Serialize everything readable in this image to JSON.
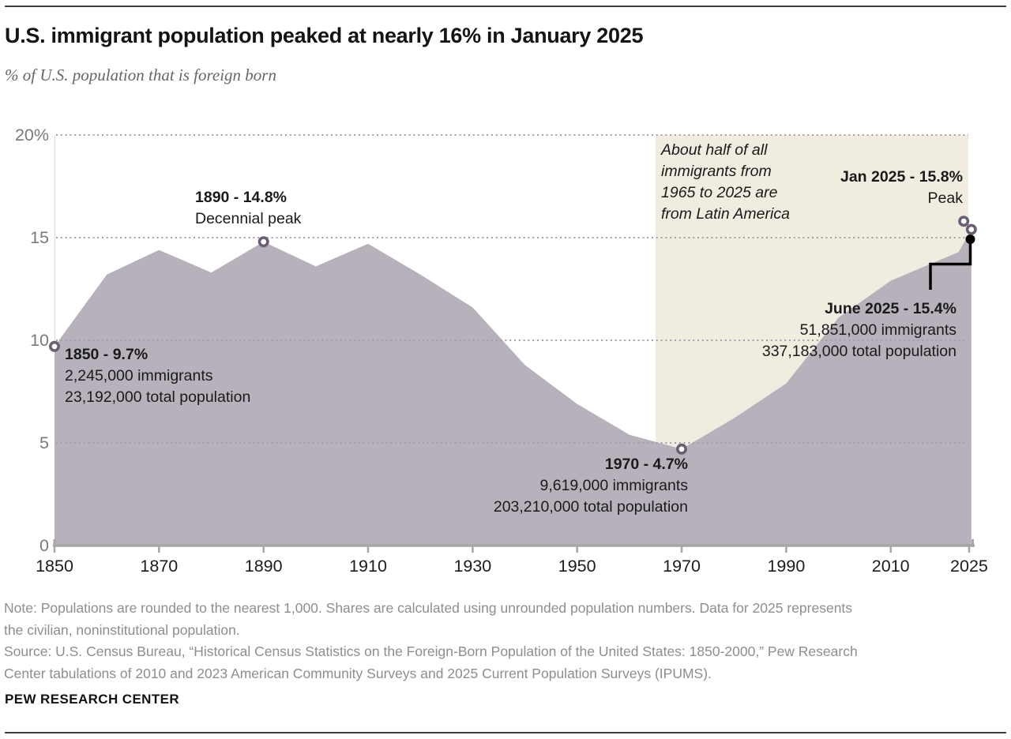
{
  "page": {
    "title": "U.S. immigrant population peaked at nearly 16% in January 2025",
    "subtitle": "% of U.S. population that is foreign born"
  },
  "chart_data": {
    "type": "area",
    "title": "U.S. immigrant population peaked at nearly 16% in January 2025",
    "ylabel": "% of U.S. population that is foreign born",
    "xlim": [
      1850,
      2025.5
    ],
    "ylim": [
      0,
      20
    ],
    "grid": "dotted-horizontal",
    "legend": "none",
    "series": [
      {
        "name": "Foreign-born share of U.S. population (%)",
        "points": [
          [
            1850,
            9.7
          ],
          [
            1860,
            13.2
          ],
          [
            1870,
            14.4
          ],
          [
            1880,
            13.3
          ],
          [
            1890,
            14.8
          ],
          [
            1900,
            13.6
          ],
          [
            1910,
            14.7
          ],
          [
            1920,
            13.2
          ],
          [
            1930,
            11.6
          ],
          [
            1940,
            8.8
          ],
          [
            1950,
            6.9
          ],
          [
            1960,
            5.4
          ],
          [
            1970,
            4.7
          ],
          [
            1980,
            6.2
          ],
          [
            1990,
            7.9
          ],
          [
            2000,
            11.1
          ],
          [
            2010,
            12.9
          ],
          [
            2023,
            14.3
          ],
          [
            2025.42,
            15.4
          ]
        ]
      }
    ],
    "extra_points": [
      {
        "label": "Jan 2025",
        "x": 2025.04,
        "y": 15.8,
        "note": "Peak"
      },
      {
        "label": "June 2025",
        "x": 2025.42,
        "y": 15.4
      }
    ],
    "markers": [
      {
        "x": 1850,
        "y": 9.7,
        "dx": 0
      },
      {
        "x": 1890,
        "y": 14.8,
        "dx": 0
      },
      {
        "x": 1970,
        "y": 4.7,
        "dx": 0
      },
      {
        "x": 2025.04,
        "y": 15.8,
        "dx": -7
      },
      {
        "x": 2025.42,
        "y": 15.4,
        "dx": 0
      }
    ],
    "yticks": [
      {
        "v": 20,
        "label": "20%"
      },
      {
        "v": 15,
        "label": "15"
      },
      {
        "v": 10,
        "label": "10"
      },
      {
        "v": 5,
        "label": "5"
      },
      {
        "v": 0,
        "label": "0"
      }
    ],
    "xticks": [
      {
        "v": 1850,
        "label": "1850"
      },
      {
        "v": 1870,
        "label": "1870"
      },
      {
        "v": 1890,
        "label": "1890"
      },
      {
        "v": 1910,
        "label": "1910"
      },
      {
        "v": 1930,
        "label": "1930"
      },
      {
        "v": 1950,
        "label": "1950"
      },
      {
        "v": 1970,
        "label": "1970"
      },
      {
        "v": 1990,
        "label": "1990"
      },
      {
        "v": 2010,
        "label": "2010"
      },
      {
        "v": 2025,
        "label": "2025"
      }
    ],
    "highlight_region": {
      "x0": 1965,
      "x1": 2025.5,
      "note": "About half of all immigrants from 1965 to 2025 are from Latin America"
    }
  },
  "annotations": {
    "y1850": {
      "title": "1850 - 9.7%",
      "line2": "2,245,000 immigrants",
      "line3": "23,192,000 total population"
    },
    "y1890": {
      "title": "1890 - 14.8%",
      "line2": "Decennial peak"
    },
    "y1970": {
      "title": "1970 - 4.7%",
      "line2": "9,619,000 immigrants",
      "line3": "203,210,000 total population"
    },
    "jan2025": {
      "title": "Jan 2025 - 15.8%",
      "line2": "Peak"
    },
    "june2025": {
      "title": "June 2025 - 15.4%",
      "line2": "51,851,000 immigrants",
      "line3": "337,183,000 total population"
    },
    "region_lines": [
      "About half of all",
      "immigrants from",
      "1965 to 2025 are",
      "from Latin America"
    ]
  },
  "footer": {
    "note_lines": [
      "Note: Populations are rounded to the nearest 1,000. Shares are calculated using unrounded population numbers. Data for 2025 represents",
      "the civilian, noninstitutional population."
    ],
    "source_lines": [
      "Source: U.S. Census Bureau, “Historical Census Statistics on the Foreign-Born Population of the United States: 1850-2000,” Pew Research",
      "Center tabulations of 2010 and 2023 American Community Surveys and 2025 Current Population Surveys (IPUMS)."
    ],
    "brand": "PEW RESEARCH CENTER"
  },
  "colors": {
    "area_fill": "#b6b1bb",
    "highlight_fill": "#f0ece0",
    "marker_ring": "#6b5e74",
    "marker_fill": "#ffffff",
    "grid": "#a49eab",
    "axis": "#a6a6a6",
    "callout": "#000000",
    "x_tick_label": "#1c1c1c",
    "y_tick_label": "#7a7a7a",
    "note_text": "#8e8e8e",
    "annotation_text": "#1a1a1a"
  }
}
